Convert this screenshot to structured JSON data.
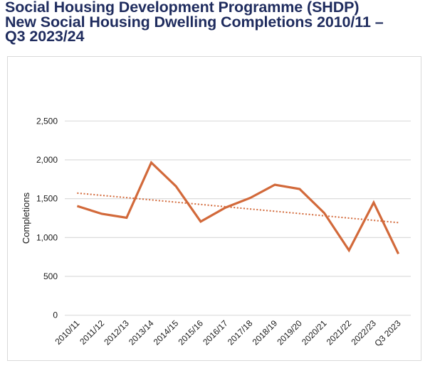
{
  "title_lines": [
    "Social Housing Development Programme (SHDP)",
    "New Social Housing Dwelling Completions 2010/11 –",
    "Q3 2023/24"
  ],
  "colors": {
    "title": "#1f2c5e",
    "series": "#d2693a",
    "gridline": "#dcdcdc",
    "frame": "#d9d9d9"
  },
  "chart_data": {
    "type": "line",
    "title": "Social Housing Development Programme (SHDP) New Social Housing Dwelling Completions 2010/11 – Q3 2023/24",
    "xlabel": "",
    "ylabel": "Completions",
    "categories": [
      "2010/11",
      "2011/12",
      "2012/13",
      "2013/14",
      "2014/15",
      "2015/16",
      "2016/17",
      "2017/18",
      "2018/19",
      "2019/20",
      "2020/21",
      "2021/22",
      "2022/23",
      "Q3 2023"
    ],
    "series": [
      {
        "name": "Completions",
        "style": "solid",
        "values": [
          1405,
          1305,
          1255,
          1965,
          1660,
          1205,
          1385,
          1510,
          1680,
          1625,
          1315,
          835,
          1450,
          790
        ]
      },
      {
        "name": "Linear trend",
        "style": "dotted",
        "values": [
          1572,
          1192
        ],
        "at_categories": [
          "2010/11",
          "Q3 2023"
        ]
      }
    ],
    "ylim": [
      0,
      2500
    ],
    "yticks": [
      0,
      500,
      1000,
      1500,
      2000,
      2500
    ],
    "ytick_labels": [
      "0",
      "500",
      "1,000",
      "1,500",
      "2,000",
      "2,500"
    ],
    "grid": true,
    "legend": "none"
  }
}
